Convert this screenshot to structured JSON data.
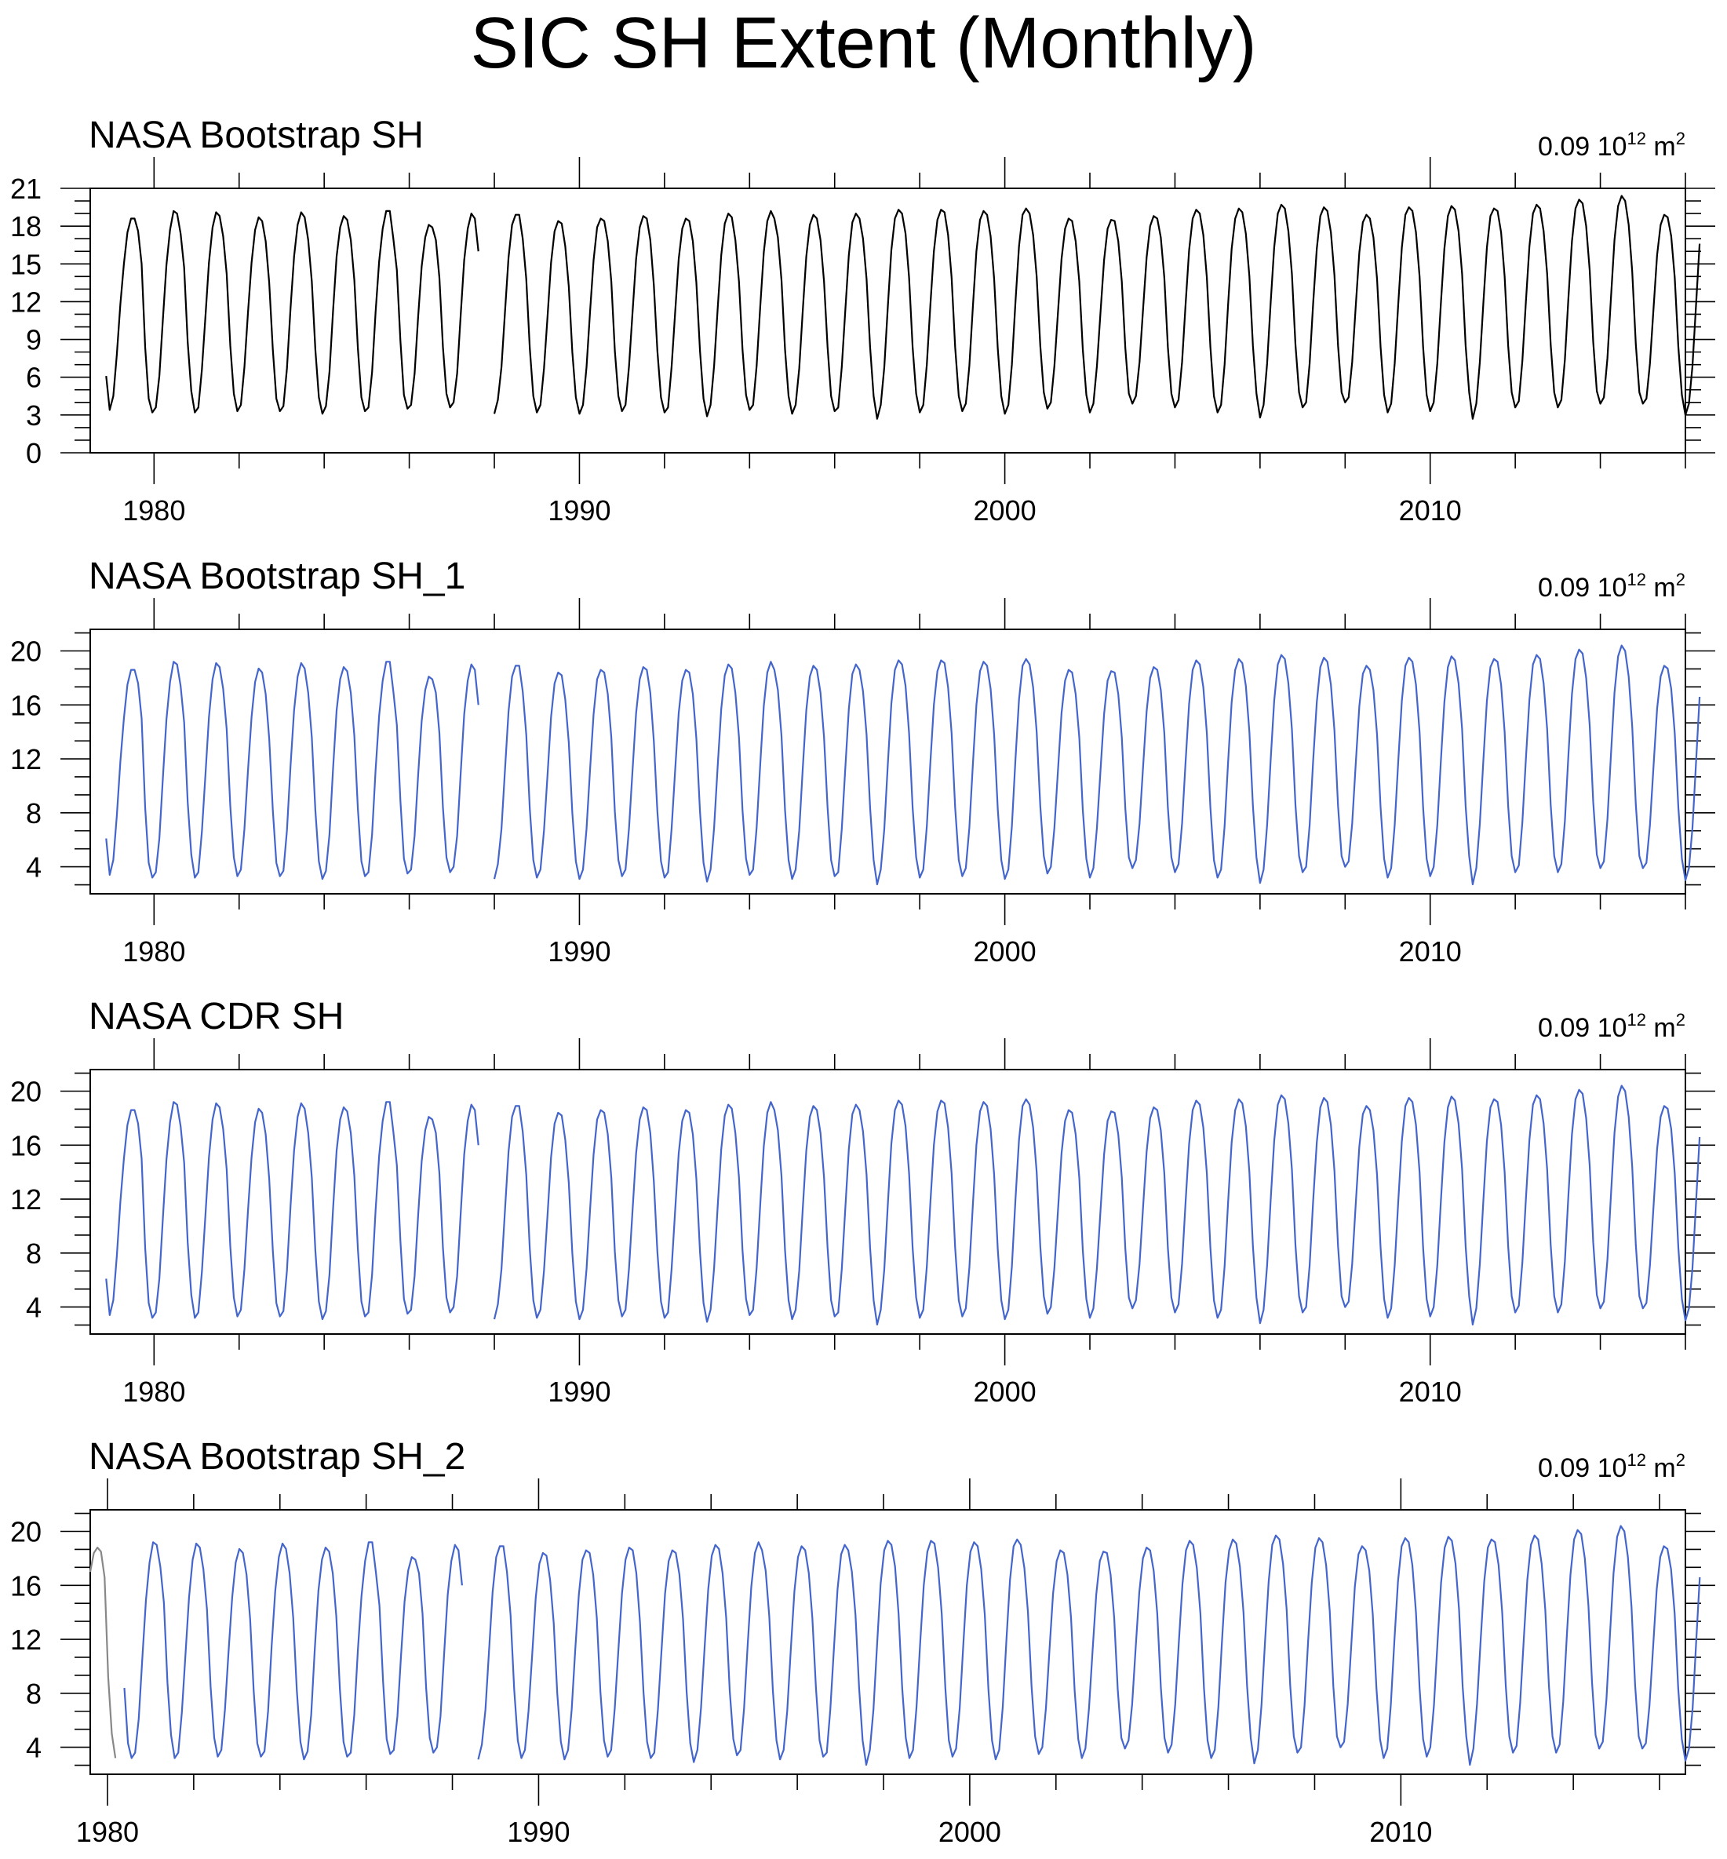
{
  "page": {
    "title": "SIC SH Extent (Monthly)"
  },
  "chart_data": [
    {
      "type": "line",
      "title": "NASA Bootstrap SH",
      "units": {
        "scale": "0.09",
        "base": "10",
        "exponent": "12",
        "unit": "m",
        "unit_exponent": "2"
      },
      "xlim": [
        1978.5,
        2016.0
      ],
      "ylim": [
        0,
        21
      ],
      "xticks": [
        1980,
        1990,
        2000,
        2010
      ],
      "yticks": [
        0,
        3,
        6,
        9,
        12,
        15,
        18,
        21
      ],
      "series": [
        {
          "color": "#000000",
          "segments": [
            {
              "x_start": 1978.875,
              "values": [
                6.1,
                3.4,
                4.5,
                7.8,
                11.8,
                15.0,
                17.5,
                18.6,
                18.6,
                17.6,
                15.0,
                8.4,
                4.3,
                3.2,
                3.6,
                6.1,
                10.6,
                14.9,
                17.7,
                19.2,
                19.0,
                17.4,
                14.7,
                8.8,
                4.9,
                3.2,
                3.6,
                6.6,
                10.8,
                15.1,
                17.9,
                19.1,
                18.8,
                17.2,
                14.2,
                8.5,
                4.7,
                3.3,
                3.8,
                6.8,
                11.1,
                15.1,
                17.7,
                18.7,
                18.4,
                16.8,
                13.5,
                8.2,
                4.3,
                3.3,
                3.7,
                6.7,
                11.5,
                15.6,
                18.1,
                19.1,
                18.7,
                16.9,
                13.6,
                8.2,
                4.4,
                3.1,
                3.7,
                6.4,
                11.3,
                15.6,
                17.9,
                18.8,
                18.5,
                16.9,
                13.7,
                8.3,
                4.4,
                3.3,
                3.6,
                6.4,
                11.2,
                15.2,
                17.8,
                19.2,
                19.2,
                17.0,
                14.5,
                8.9,
                4.6,
                3.5,
                3.8,
                6.3,
                10.8,
                14.8,
                17.1,
                18.1,
                17.9,
                16.9,
                13.9,
                8.4,
                4.7,
                3.6,
                4.0,
                6.3,
                10.9,
                15.3,
                17.8,
                19.0,
                18.6,
                16.0
              ]
            },
            {
              "x_start": 1988.0,
              "values": [
                3.1,
                4.2,
                6.8,
                11.2,
                15.5,
                18.1,
                18.9,
                18.9,
                17.0,
                13.8,
                8.3,
                4.5,
                3.2,
                3.8,
                6.7,
                10.8,
                15.1,
                17.6,
                18.4,
                18.2,
                16.4,
                13.2,
                8.0,
                4.4,
                3.1,
                3.8,
                6.8,
                11.2,
                15.3,
                17.9,
                18.6,
                18.4,
                16.8,
                13.6,
                8.1,
                4.5,
                3.3,
                3.8,
                6.9,
                11.2,
                15.4,
                17.9,
                18.8,
                18.6,
                16.9,
                13.3,
                8.1,
                4.4,
                3.2,
                3.6,
                6.8,
                11.1,
                15.4,
                17.8,
                18.6,
                18.4,
                16.8,
                13.5,
                8.1,
                4.3,
                2.9,
                3.8,
                6.9,
                11.4,
                15.7,
                18.2,
                19.0,
                18.7,
                16.9,
                13.6,
                8.2,
                4.6,
                3.4,
                3.8,
                6.9,
                11.6,
                15.9,
                18.4,
                19.2,
                18.6,
                17.1,
                13.7,
                8.2,
                4.5,
                3.1,
                3.8,
                6.7,
                11.3,
                15.6,
                18.1,
                18.9,
                18.6,
                16.9,
                13.6,
                8.4,
                4.5,
                3.3,
                3.6,
                6.8,
                11.3,
                15.7,
                18.3,
                19.0,
                18.6,
                17.0,
                13.8,
                8.4,
                4.5,
                2.7,
                3.8,
                6.8,
                11.6,
                16.1,
                18.6,
                19.3,
                19.0,
                17.4,
                13.9,
                8.4,
                4.7,
                3.2,
                3.8,
                7.0,
                11.7,
                16.0,
                18.5,
                19.3,
                19.1,
                17.3,
                13.9,
                8.4,
                4.5,
                3.3,
                3.9,
                6.9,
                11.6,
                16.0,
                18.5,
                19.2,
                18.9,
                17.2,
                13.8,
                8.3,
                4.5,
                3.1,
                3.8,
                7.0,
                11.9,
                16.4,
                18.9,
                19.4,
                19.0,
                17.3,
                14.0,
                8.5,
                4.8,
                3.5,
                4.0,
                6.9,
                11.2,
                15.4,
                17.8,
                18.6,
                18.4,
                16.8,
                13.6,
                8.2,
                4.6,
                3.2,
                3.9,
                6.9,
                11.2,
                15.3,
                17.8,
                18.5,
                18.4,
                16.8,
                13.6,
                8.3,
                4.7,
                3.9,
                4.5,
                7.2,
                11.4,
                15.5,
                18.0,
                18.8,
                18.6,
                17.1,
                13.9,
                8.4,
                4.7,
                3.6,
                4.2,
                7.2,
                11.8,
                16.1,
                18.6,
                19.3,
                19.0,
                17.3,
                13.9,
                8.4,
                4.5,
                3.2,
                3.8,
                7.0,
                11.8,
                16.2,
                18.6,
                19.4,
                19.1,
                17.4,
                14.0,
                8.5,
                4.7,
                2.8,
                3.8,
                7.1,
                11.9,
                16.3,
                19.0,
                19.7,
                19.4,
                17.6,
                14.2,
                8.6,
                4.8,
                3.6,
                4.0,
                7.1,
                11.9,
                16.2,
                18.8,
                19.5,
                19.2,
                17.5,
                14.1,
                8.5,
                4.8,
                4.0,
                4.4,
                7.2,
                11.6,
                15.9,
                18.3,
                18.9,
                18.6,
                17.1,
                13.8,
                8.4,
                4.6,
                3.2,
                3.9,
                7.1,
                11.9,
                16.3,
                18.9,
                19.5,
                19.2,
                17.5,
                14.0,
                8.4,
                4.6,
                3.3,
                4.0,
                7.1,
                11.8,
                16.2,
                18.8,
                19.6,
                19.3,
                17.6,
                14.2,
                8.5,
                4.8,
                2.7,
                3.9,
                7.2,
                11.9,
                16.3,
                18.8,
                19.4,
                19.2,
                17.5,
                14.0,
                8.5,
                4.8,
                3.6,
                4.1,
                7.3,
                12.0,
                16.4,
                19.0,
                19.7,
                19.4,
                17.6,
                14.2,
                8.6,
                4.8,
                3.6,
                4.2,
                7.4,
                12.3,
                16.8,
                19.4,
                20.1,
                19.8,
                18.0,
                14.5,
                8.8,
                4.9,
                3.9,
                4.4,
                7.5,
                12.3,
                16.9,
                19.6,
                20.4,
                20.0,
                18.1,
                14.4,
                8.6,
                4.8,
                3.9,
                4.3,
                7.1,
                11.4,
                15.7,
                18.1,
                18.9,
                18.7,
                17.2,
                13.9,
                8.4,
                4.6,
                3.0,
                3.9,
                6.9,
                11.8,
                16.6
              ]
            }
          ]
        }
      ]
    },
    {
      "type": "line",
      "title": "NASA Bootstrap SH_1",
      "units": {
        "scale": "0.09",
        "base": "10",
        "exponent": "12",
        "unit": "m",
        "unit_exponent": "2"
      },
      "xlim": [
        1978.5,
        2016.0
      ],
      "ylim": [
        2,
        21.6
      ],
      "xticks": [
        1980,
        1990,
        2000,
        2010
      ],
      "yticks": [
        4,
        8,
        12,
        16,
        20
      ],
      "series": [
        {
          "color": "#4466CC",
          "same_values_as": 0
        }
      ]
    },
    {
      "type": "line",
      "title": "NASA CDR SH",
      "units": {
        "scale": "0.09",
        "base": "10",
        "exponent": "12",
        "unit": "m",
        "unit_exponent": "2"
      },
      "xlim": [
        1978.5,
        2016.0
      ],
      "ylim": [
        2,
        21.6
      ],
      "xticks": [
        1980,
        1990,
        2000,
        2010
      ],
      "yticks": [
        4,
        8,
        12,
        16,
        20
      ],
      "series": [
        {
          "color": "#4466CC",
          "same_values_as": 0
        }
      ]
    },
    {
      "type": "line",
      "title": "NASA Bootstrap SH_2",
      "units": {
        "scale": "0.09",
        "base": "10",
        "exponent": "12",
        "unit": "m",
        "unit_exponent": "2"
      },
      "xlim": [
        1979.6,
        2016.6
      ],
      "ylim": [
        2,
        21.6
      ],
      "xticks": [
        1980,
        1990,
        2000,
        2010
      ],
      "yticks": [
        4,
        8,
        12,
        16,
        20
      ],
      "series": [
        {
          "color": "#888888",
          "segments": [
            {
              "x_start": 1979.6,
              "values": [
                17.0,
                18.4,
                18.8,
                18.5,
                16.6,
                9.2,
                5.0,
                3.2
              ]
            }
          ]
        },
        {
          "color": "#4466CC",
          "same_values_as": 0,
          "x_shift": 0.6,
          "x_from": 1980.4
        }
      ]
    }
  ]
}
